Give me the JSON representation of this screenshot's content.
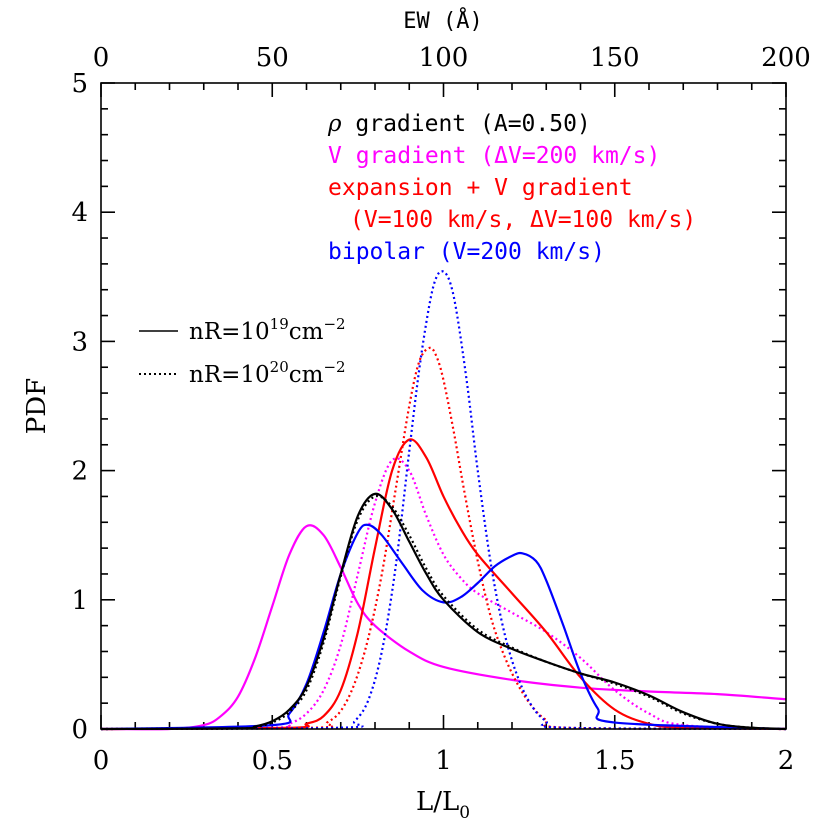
{
  "chart_data": {
    "type": "line",
    "xlabel": "L/L",
    "xlabel_sub": "0",
    "ylabel": "PDF",
    "top_axis_label": "EW (Å)",
    "xlim": [
      0,
      2
    ],
    "ylim": [
      0,
      5
    ],
    "top_axis_lim": [
      0,
      200
    ],
    "x_ticks": [
      "0",
      "0.5",
      "1",
      "1.5",
      "2"
    ],
    "y_ticks": [
      "0",
      "1",
      "2",
      "3",
      "4",
      "5"
    ],
    "top_ticks": [
      "0",
      "50",
      "100",
      "150",
      "200"
    ],
    "grid": false,
    "annotations": [
      {
        "parts": [
          {
            "t": "ρ",
            "style": "italic-serif"
          },
          {
            "t": " gradient (A=0.50)"
          }
        ],
        "color": "#000000"
      },
      {
        "parts": [
          {
            "t": "V gradient (ΔV=200 km/s)"
          }
        ],
        "color": "#ff00ff"
      },
      {
        "parts": [
          {
            "t": "expansion + V gradient"
          }
        ],
        "color": "#ff0000"
      },
      {
        "parts": [
          {
            "t": "(V=100 km/s, ΔV=100 km/s)"
          }
        ],
        "color": "#ff0000"
      },
      {
        "parts": [
          {
            "t": "bipolar (V=200 km/s)"
          }
        ],
        "color": "#0000ff"
      }
    ],
    "legend": {
      "placement": "center-left",
      "items": [
        {
          "style": "solid",
          "text": "nR=10",
          "sup": "19",
          "unit": "cm",
          "unit_sup": "−2"
        },
        {
          "style": "dotted",
          "text": "nR=10",
          "sup": "20",
          "unit": "cm",
          "unit_sup": "−2"
        }
      ]
    },
    "series": [
      {
        "color": "#ff00ff",
        "style": "solid",
        "x": [
          0,
          0.2,
          0.3,
          0.35,
          0.4,
          0.45,
          0.5,
          0.55,
          0.6,
          0.65,
          0.7,
          0.75,
          0.8,
          0.9,
          1.0,
          1.2,
          1.4,
          1.6,
          1.8,
          2.0
        ],
        "y": [
          0,
          0,
          0.03,
          0.1,
          0.25,
          0.55,
          0.95,
          1.35,
          1.57,
          1.5,
          1.25,
          0.97,
          0.8,
          0.6,
          0.48,
          0.38,
          0.32,
          0.29,
          0.27,
          0.23
        ]
      },
      {
        "color": "#ff00ff",
        "style": "dotted",
        "x": [
          0,
          0.5,
          0.55,
          0.6,
          0.65,
          0.7,
          0.75,
          0.8,
          0.85,
          0.9,
          0.95,
          1.0,
          1.05,
          1.1,
          1.2,
          1.3,
          1.4,
          1.5,
          1.6,
          1.7,
          2.0
        ],
        "y": [
          0,
          0.01,
          0.04,
          0.12,
          0.3,
          0.65,
          1.2,
          1.75,
          2.08,
          2.0,
          1.65,
          1.35,
          1.17,
          1.05,
          0.9,
          0.75,
          0.55,
          0.3,
          0.12,
          0.03,
          0
        ]
      },
      {
        "color": "#ff0000",
        "style": "solid",
        "x": [
          0,
          0.55,
          0.6,
          0.65,
          0.7,
          0.75,
          0.8,
          0.85,
          0.9,
          0.95,
          1.0,
          1.05,
          1.1,
          1.2,
          1.3,
          1.4,
          1.5,
          1.6,
          1.7,
          2.0
        ],
        "y": [
          0,
          0.01,
          0.04,
          0.1,
          0.3,
          0.75,
          1.4,
          2.0,
          2.24,
          2.1,
          1.8,
          1.55,
          1.35,
          1.05,
          0.75,
          0.4,
          0.15,
          0.04,
          0.01,
          0
        ]
      },
      {
        "color": "#ff0000",
        "style": "dotted",
        "x": [
          0,
          0.62,
          0.66,
          0.7,
          0.74,
          0.78,
          0.82,
          0.86,
          0.9,
          0.93,
          0.96,
          0.98,
          1.0,
          1.03,
          1.06,
          1.1,
          1.14,
          1.18,
          1.22,
          1.26,
          1.3,
          1.36,
          2.0
        ],
        "y": [
          0,
          0.01,
          0.05,
          0.14,
          0.35,
          0.7,
          1.2,
          1.85,
          2.5,
          2.85,
          2.95,
          2.88,
          2.7,
          2.3,
          1.85,
          1.3,
          0.85,
          0.55,
          0.33,
          0.17,
          0.07,
          0.01,
          0
        ]
      },
      {
        "color": "#0000ff",
        "style": "solid",
        "x": [
          0,
          0.5,
          0.55,
          0.6,
          0.65,
          0.7,
          0.75,
          0.78,
          0.82,
          0.88,
          0.94,
          1.0,
          1.05,
          1.1,
          1.15,
          1.2,
          1.23,
          1.27,
          1.3,
          1.35,
          1.4,
          1.45,
          1.5,
          2.0
        ],
        "y": [
          0,
          0.03,
          0.12,
          0.35,
          0.75,
          1.2,
          1.52,
          1.58,
          1.5,
          1.28,
          1.07,
          0.98,
          1.02,
          1.13,
          1.26,
          1.34,
          1.36,
          1.3,
          1.15,
          0.8,
          0.43,
          0.16,
          0.05,
          0
        ]
      },
      {
        "color": "#0000ff",
        "style": "dotted",
        "x": [
          0,
          0.7,
          0.74,
          0.78,
          0.82,
          0.86,
          0.9,
          0.93,
          0.96,
          0.98,
          1.0,
          1.02,
          1.04,
          1.07,
          1.1,
          1.14,
          1.18,
          1.22,
          1.26,
          1.3,
          1.35,
          2.0
        ],
        "y": [
          0,
          0.01,
          0.06,
          0.22,
          0.6,
          1.25,
          2.15,
          2.8,
          3.3,
          3.5,
          3.54,
          3.45,
          3.2,
          2.65,
          2.0,
          1.25,
          0.72,
          0.38,
          0.17,
          0.06,
          0.01,
          0
        ]
      },
      {
        "color": "#000000",
        "style": "solid",
        "x": [
          0,
          0.4,
          0.45,
          0.5,
          0.55,
          0.6,
          0.65,
          0.7,
          0.75,
          0.8,
          0.85,
          0.9,
          0.95,
          1.0,
          1.1,
          1.2,
          1.3,
          1.4,
          1.5,
          1.6,
          1.7,
          1.8,
          1.9,
          2.0
        ],
        "y": [
          0,
          0.005,
          0.02,
          0.06,
          0.15,
          0.33,
          0.7,
          1.2,
          1.65,
          1.82,
          1.7,
          1.45,
          1.2,
          1.0,
          0.75,
          0.62,
          0.52,
          0.43,
          0.36,
          0.26,
          0.13,
          0.04,
          0.01,
          0
        ]
      },
      {
        "color": "#000000",
        "style": "dotted",
        "x": [
          0,
          0.4,
          0.45,
          0.5,
          0.55,
          0.6,
          0.65,
          0.7,
          0.75,
          0.8,
          0.85,
          0.9,
          0.95,
          1.0,
          1.1,
          1.2,
          1.3,
          1.4,
          1.5,
          1.6,
          1.7,
          1.8,
          1.9,
          2.0
        ],
        "y": [
          0,
          0.004,
          0.015,
          0.05,
          0.13,
          0.3,
          0.67,
          1.18,
          1.62,
          1.8,
          1.72,
          1.5,
          1.24,
          1.03,
          0.77,
          0.63,
          0.52,
          0.43,
          0.35,
          0.25,
          0.12,
          0.04,
          0.01,
          0
        ]
      }
    ]
  }
}
